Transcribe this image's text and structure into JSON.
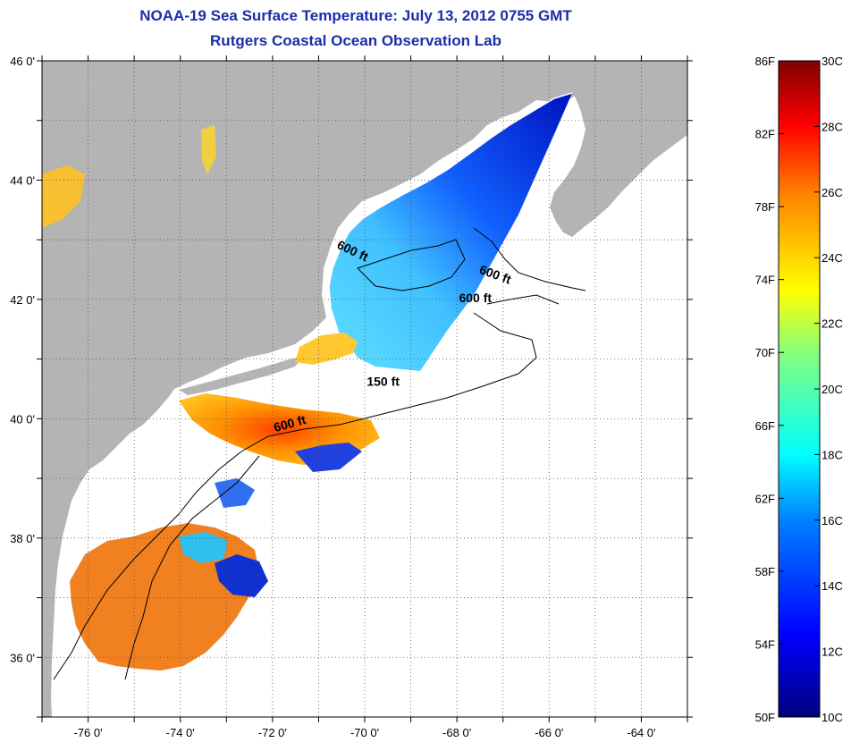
{
  "title": "NOAA-19 Sea Surface Temperature:  July 13, 2012 0755 GMT",
  "subtitle": "Rutgers Coastal Ocean Observation Lab",
  "map": {
    "lon_range": [
      -77,
      -63
    ],
    "lat_range": [
      35,
      46
    ],
    "lat_ticks": [
      {
        "value": 46,
        "label": "46 0'"
      },
      {
        "value": 44,
        "label": "44 0'"
      },
      {
        "value": 42,
        "label": "42 0'"
      },
      {
        "value": 40,
        "label": "40 0'"
      },
      {
        "value": 38,
        "label": "38 0'"
      },
      {
        "value": 36,
        "label": "36 0'"
      }
    ],
    "lon_ticks": [
      {
        "value": -76,
        "label": "-76 0'"
      },
      {
        "value": -74,
        "label": "-74 0'"
      },
      {
        "value": -72,
        "label": "-72 0'"
      },
      {
        "value": -70,
        "label": "-70 0'"
      },
      {
        "value": -68,
        "label": "-68 0'"
      },
      {
        "value": -66,
        "label": "-66 0'"
      },
      {
        "value": -64,
        "label": "-64 0'"
      }
    ],
    "grid": "dotted",
    "land_color": "#b4b4b4",
    "no_data_color": "#ffffff",
    "contour_labels": [
      {
        "text": "600 ft",
        "lon": -70.3,
        "lat": 42.75
      },
      {
        "text": "600 ft",
        "lon": -67.2,
        "lat": 42.35
      },
      {
        "text": "600 ft",
        "lon": -67.6,
        "lat": 41.95
      },
      {
        "text": "150 ft",
        "lon": -69.6,
        "lat": 40.55
      },
      {
        "text": "600 ft",
        "lon": -71.6,
        "lat": 39.85
      }
    ]
  },
  "colorbar": {
    "f_labels": [
      "86F",
      "82F",
      "78F",
      "74F",
      "70F",
      "66F",
      "62F",
      "58F",
      "54F",
      "50F"
    ],
    "c_labels": [
      "30C",
      "28C",
      "26C",
      "24C",
      "22C",
      "20C",
      "18C",
      "16C",
      "14C",
      "12C",
      "10C"
    ],
    "c_range": [
      10,
      30
    ],
    "colors": [
      "#00007f",
      "#0000ff",
      "#0080ff",
      "#00ffff",
      "#80ff80",
      "#ffff00",
      "#ff8000",
      "#ff0000",
      "#7f0000"
    ]
  }
}
